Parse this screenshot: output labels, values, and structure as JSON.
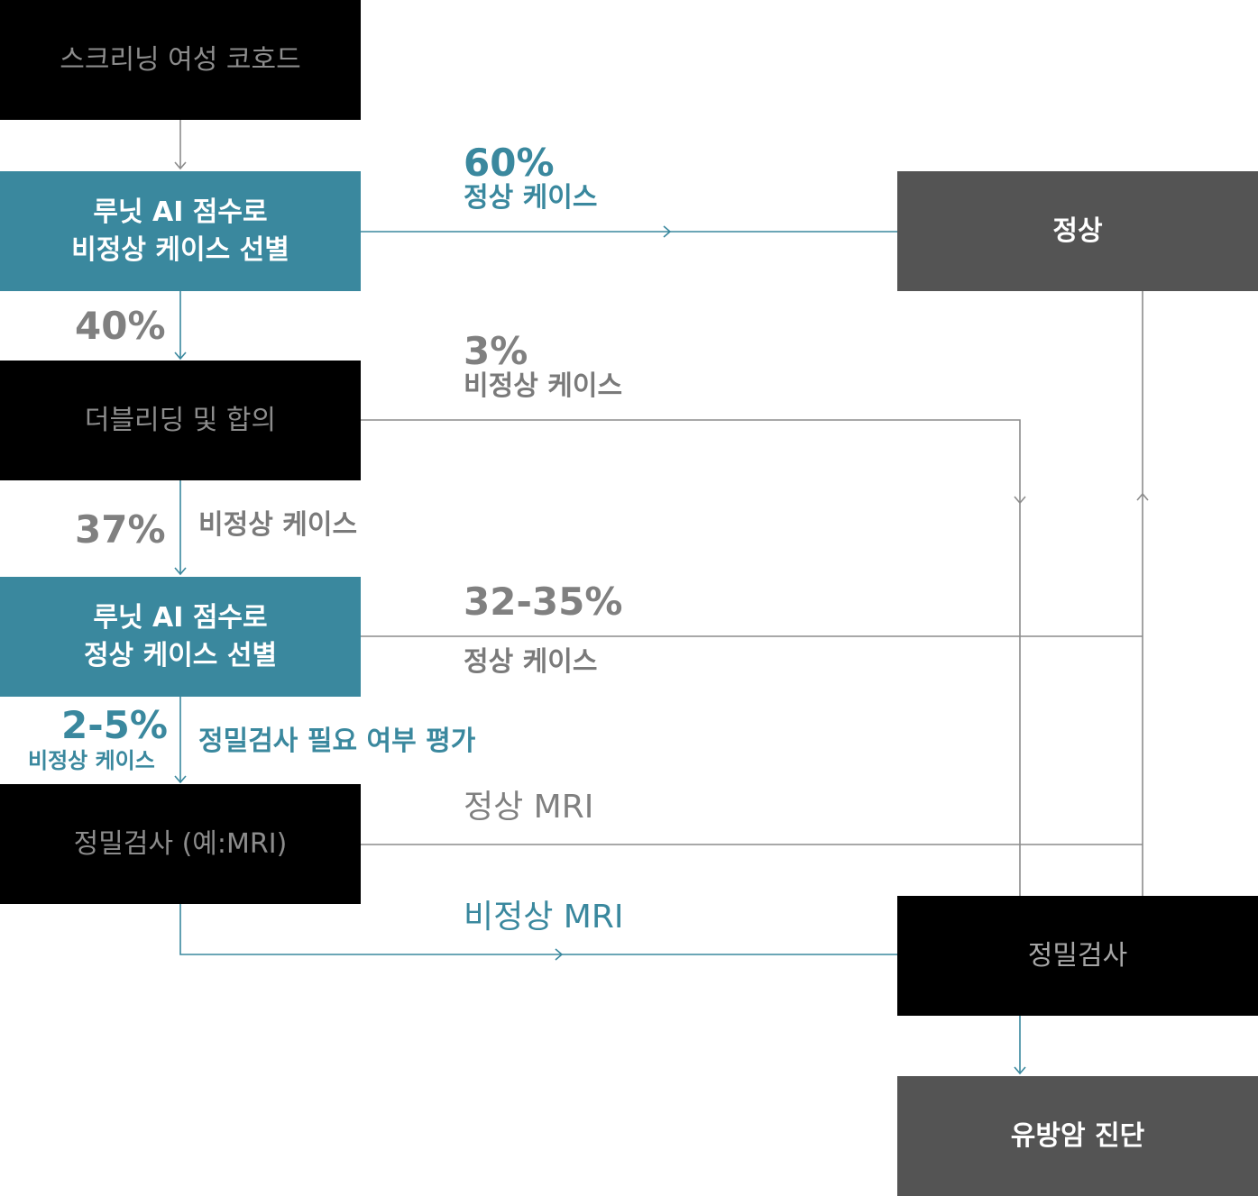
{
  "nodes": {
    "cohort": "스크리닝 여성 코호드",
    "ai_abnormal": "루닛 AI 점수로\n비정상 케이스 선별",
    "double_read": "더블리딩 및 합의",
    "ai_normal": "루닛 AI 점수로\n정상 케이스 선별",
    "workup": "정밀검사 (예:MRI)",
    "normal": "정상",
    "workup_right": "정밀검사",
    "diagnosis": "유방암 진단"
  },
  "edges": {
    "to_normal_pct": "60%",
    "to_normal_label": "정상 케이스",
    "to_double_pct": "40%",
    "to_workup_pct": "3%",
    "to_workup_label": "비정상 케이스",
    "to_ai_normal_pct": "37%",
    "to_ai_normal_label": "비정상 케이스",
    "ai_normal_pct": "32-35%",
    "ai_normal_label": "정상 케이스",
    "to_mri_pct": "2-5%",
    "to_mri_label": "비정상 케이스",
    "to_mri_note": "정밀검사 필요 여부 평가",
    "mri_normal": "정상 MRI",
    "mri_abnormal": "비정상 MRI"
  },
  "colors": {
    "teal": "#3a889e",
    "black": "#000000",
    "dark_gray": "#545454",
    "line_gray": "#8c8c8c"
  }
}
